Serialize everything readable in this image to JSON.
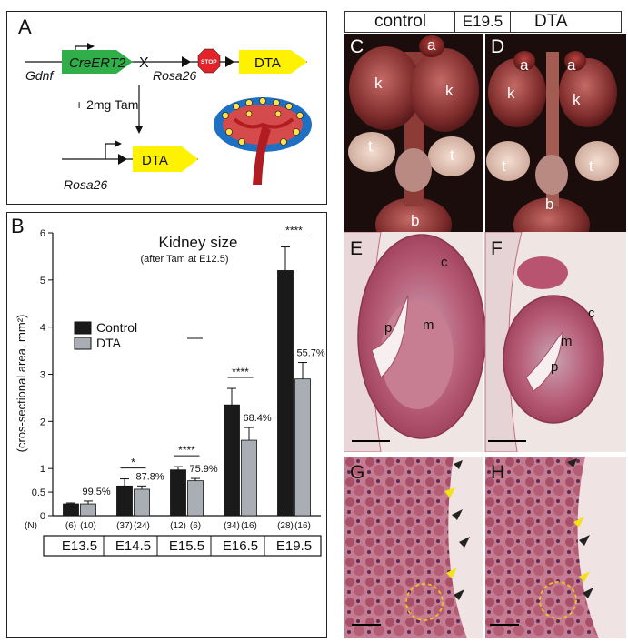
{
  "panel_a": {
    "letter": "A",
    "gene_gdnf": "Gdnf",
    "construct_creert2": "CreERT2",
    "cross_symbol": "X",
    "gene_rosa26_top": "Rosa26",
    "stop_label": "STOP",
    "construct_dta_top": "DTA",
    "treatment": "+ 2mg Tam",
    "gene_rosa26_bottom": "Rosa26",
    "construct_dta_bottom": "DTA",
    "colors": {
      "creert2": "#2fae49",
      "dta": "#fff200",
      "stop": "#e3232a",
      "kidney_cap": "#1f6fc2",
      "ureter": "#c0272d"
    }
  },
  "panel_b": {
    "letter": "B",
    "n_label": "(N)",
    "n_counts": [
      "(6)",
      "(10)",
      "(37)",
      "(24)",
      "(12)",
      "(6)",
      "(34)",
      "(16)",
      "(28)",
      "(16)"
    ],
    "stages": [
      "E13.5",
      "E14.5",
      "E15.5",
      "E16.5",
      "E19.5"
    ],
    "significance": [
      "*",
      "****",
      "****",
      "****"
    ],
    "colors": {
      "control": "#1a1a1a",
      "dta": "#a9aeb5"
    }
  },
  "chart_data": {
    "type": "bar",
    "title": "Kidney size",
    "subtitle": "(after Tam at E12.5)",
    "ylabel": "(cros-sectional area, mm²)",
    "ylim": [
      0,
      6
    ],
    "yticks": [
      "0",
      "0.5",
      "1",
      "2",
      "3",
      "4",
      "5",
      "6"
    ],
    "categories": [
      "E13.5",
      "E14.5",
      "E15.5",
      "E16.5",
      "E19.5"
    ],
    "legend_position": "middle-left",
    "series": [
      {
        "name": "Control",
        "values": [
          0.25,
          0.63,
          0.97,
          2.35,
          5.2
        ],
        "errors": [
          0.02,
          0.15,
          0.07,
          0.35,
          0.5
        ]
      },
      {
        "name": "DTA",
        "values": [
          0.25,
          0.56,
          0.74,
          1.6,
          2.9
        ],
        "errors": [
          0.06,
          0.07,
          0.05,
          0.27,
          0.35
        ]
      }
    ],
    "percent_labels": [
      "99.5%",
      "87.8%",
      "75.9%",
      "68.4%",
      "55.7%"
    ]
  },
  "panel_header": {
    "left": "control",
    "middle": "E19.5",
    "right": "DTA"
  },
  "panel_c": {
    "letter": "C",
    "labels": {
      "a": "a",
      "k1": "k",
      "k2": "k",
      "t1": "t",
      "t2": "t",
      "b": "b"
    }
  },
  "panel_d": {
    "letter": "D",
    "labels": {
      "a1": "a",
      "a2": "a",
      "k1": "k",
      "k2": "k",
      "t1": "t",
      "t2": "t",
      "b": "b"
    }
  },
  "panel_e": {
    "letter": "E",
    "labels": {
      "c": "c",
      "p": "p",
      "m": "m"
    }
  },
  "panel_f": {
    "letter": "F",
    "labels": {
      "c": "c",
      "m": "m",
      "p": "p"
    }
  },
  "panel_g": {
    "letter": "G"
  },
  "panel_h": {
    "letter": "H"
  }
}
